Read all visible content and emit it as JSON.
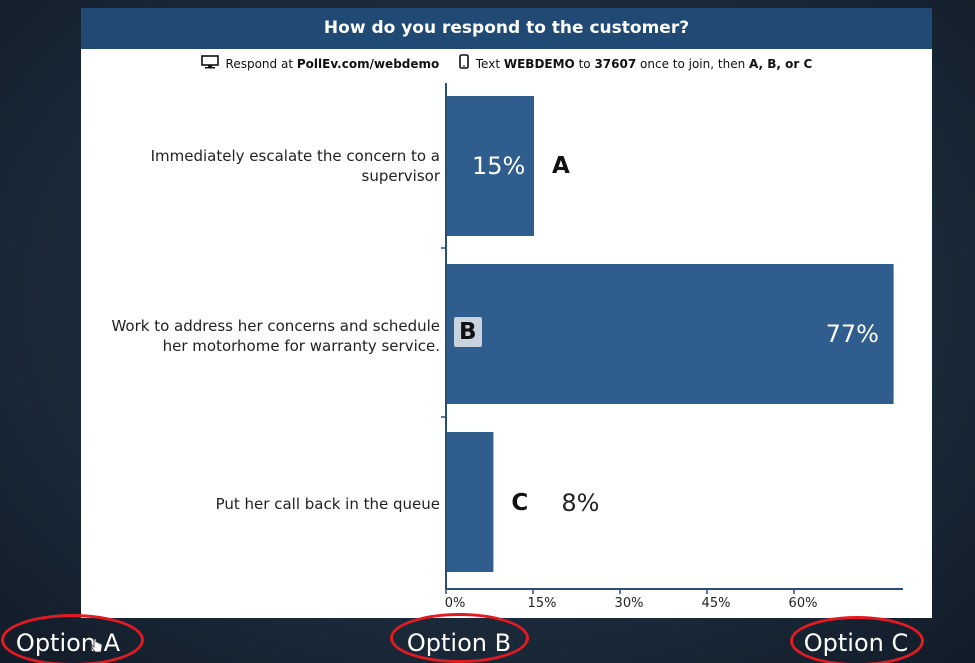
{
  "slide": {
    "question": "How do you respond to the customer?",
    "instructions": {
      "respond_prefix": "Respond at",
      "respond_url": "PollEv.com/webdemo",
      "text_prefix": "Text",
      "keyword": "WEBDEMO",
      "to": "to",
      "number": "37607",
      "suffix": "once to join, then",
      "choices": "A, B, or C"
    }
  },
  "chart_data": {
    "type": "bar",
    "orientation": "horizontal",
    "categories": [
      "Immediately escalate the concern to a supervisor",
      "Work to address her concerns and schedule her motorhome for warranty service.",
      "Put her call back in the queue"
    ],
    "category_lines": [
      [
        "Immediately escalate the concern to a",
        "supervisor"
      ],
      [
        "Work to address her concerns and schedule",
        "her motorhome for warranty service."
      ],
      [
        "Put her call back in the queue"
      ]
    ],
    "letters": [
      "A",
      "B",
      "C"
    ],
    "values": [
      15,
      77,
      8
    ],
    "value_labels": [
      "15%",
      "77%",
      "8%"
    ],
    "x_ticks": [
      "0%",
      "15%",
      "30%",
      "45%",
      "60%"
    ],
    "xlim": [
      0,
      77
    ],
    "bar_color": "#2e5d8e",
    "grid": false
  },
  "options": {
    "a": "Option A",
    "b": "Option B",
    "c": "Option C"
  },
  "colors": {
    "header": "#204a73",
    "bar": "#2e5d8e",
    "annotation": "#e21a22"
  }
}
